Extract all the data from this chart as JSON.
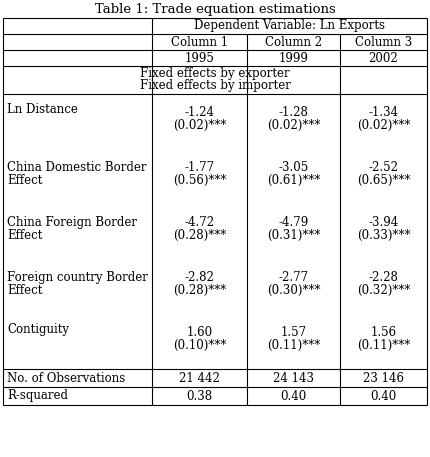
{
  "title": "Table 1: Trade equation estimations",
  "dep_var_label": "Dependent Variable: Ln Exports",
  "columns": [
    "Column 1",
    "Column 2",
    "Column 3"
  ],
  "years": [
    "1995",
    "1999",
    "2002"
  ],
  "fixed_effects_line1": "Fixed effects by exporter",
  "fixed_effects_line2": "Fixed effects by importer",
  "row_labels": [
    "Ln Distance",
    "China Domestic Border\nEffect",
    "China Foreign Border\nEffect",
    "Foreign country Border\nEffect",
    "Contiguity",
    "No. of Observations",
    "R-squared"
  ],
  "data": [
    [
      "-1.24",
      "-1.28",
      "-1.34"
    ],
    [
      "(0.02)***",
      "(0.02)***",
      "(0.02)***"
    ],
    [
      "-1.77",
      "-3.05",
      "-2.52"
    ],
    [
      "(0.56)***",
      "(0.61)***",
      "(0.65)***"
    ],
    [
      "-4.72",
      "-4.79",
      "-3.94"
    ],
    [
      "(0.28)***",
      "(0.31)***",
      "(0.33)***"
    ],
    [
      "-2.82",
      "-2.77",
      "-2.28"
    ],
    [
      "(0.28)***",
      "(0.30)***",
      "(0.32)***"
    ],
    [
      "1.60",
      "1.57",
      "1.56"
    ],
    [
      "(0.10)***",
      "(0.11)***",
      "(0.11)***"
    ],
    [
      "21 442",
      "24 143",
      "23 146"
    ],
    [
      "0.38",
      "0.40",
      "0.40"
    ]
  ],
  "bg_color": "#ffffff",
  "text_color": "#000000",
  "title_fontsize": 9.5,
  "cell_fontsize": 8.5
}
